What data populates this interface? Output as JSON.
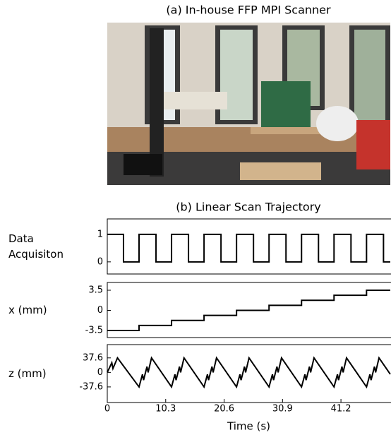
{
  "photo": {
    "title": "(a) In-house FFP MPI Scanner"
  },
  "chart_data": [
    {
      "type": "line",
      "title": "(b) Linear Scan Trajectory",
      "ylabel": "Data Acquisiton",
      "xlim": [
        0,
        49.9
      ],
      "ylim": [
        -0.44,
        1.56
      ],
      "yticks": [
        0,
        1
      ],
      "series": [
        {
          "color": "#000000",
          "x": [
            0,
            2.86,
            2.86,
            5.6,
            5.6,
            8.59,
            8.59,
            11.33,
            11.33,
            14.32,
            14.32,
            17.06,
            17.06,
            20.05,
            20.05,
            22.79,
            22.79,
            25.78,
            25.78,
            28.52,
            28.52,
            31.51,
            31.51,
            34.25,
            34.25,
            37.24,
            37.24,
            39.98,
            39.98,
            42.97,
            42.97,
            45.71,
            45.71,
            48.7,
            48.7,
            49.9
          ],
          "values": [
            1,
            1,
            0,
            0,
            1,
            1,
            0,
            0,
            1,
            1,
            0,
            0,
            1,
            1,
            0,
            0,
            1,
            1,
            0,
            0,
            1,
            1,
            0,
            0,
            1,
            1,
            0,
            0,
            1,
            1,
            0,
            0,
            1,
            1,
            0,
            0
          ]
        }
      ]
    },
    {
      "type": "line",
      "ylabel": "x (mm)",
      "xlim": [
        0,
        49.9
      ],
      "ylim": [
        -4.73,
        4.85
      ],
      "yticks": [
        -3.5,
        0,
        3.5
      ],
      "series": [
        {
          "color": "#000000",
          "x": [
            0,
            5.6,
            5.6,
            11.33,
            11.33,
            17.06,
            17.06,
            22.79,
            22.79,
            28.52,
            28.52,
            34.25,
            34.25,
            39.98,
            39.98,
            45.71,
            45.71,
            49.9
          ],
          "values": [
            -3.5,
            -3.5,
            -2.625,
            -2.625,
            -1.75,
            -1.75,
            -0.875,
            -0.875,
            0,
            0,
            0.875,
            0.875,
            1.75,
            1.75,
            2.625,
            2.625,
            3.5,
            3.5
          ]
        }
      ]
    },
    {
      "type": "line",
      "ylabel": "z (mm)",
      "xlabel": "Time (s)",
      "xlim": [
        0,
        49.9
      ],
      "ylim": [
        -78,
        72
      ],
      "yticks": [
        -37.6,
        0,
        37.6
      ],
      "xticks": [
        0,
        10.3,
        20.6,
        30.9,
        41.2
      ],
      "series": [
        {
          "color": "#000000",
          "x": [
            0,
            0.8,
            1.0,
            1.8,
            5.6,
            6.2,
            6.4,
            7.0,
            7.2,
            7.8,
            11.33,
            11.93,
            12.13,
            12.73,
            12.93,
            13.53,
            17.06,
            17.66,
            17.86,
            18.46,
            18.66,
            19.26,
            22.79,
            23.39,
            23.59,
            24.19,
            24.39,
            24.99,
            28.52,
            29.12,
            29.32,
            29.92,
            30.12,
            30.72,
            34.25,
            34.85,
            35.05,
            35.65,
            35.85,
            36.45,
            39.98,
            40.58,
            40.78,
            41.38,
            41.58,
            42.18,
            45.71,
            46.31,
            46.51,
            47.11,
            47.31,
            47.91,
            49.9
          ],
          "values": [
            0,
            25,
            10,
            37.6,
            -37.6,
            -5,
            -20,
            15,
            0,
            37.6,
            -37.6,
            -5,
            -20,
            15,
            0,
            37.6,
            -37.6,
            -5,
            -20,
            15,
            0,
            37.6,
            -37.6,
            -5,
            -20,
            15,
            0,
            37.6,
            -37.6,
            -5,
            -20,
            15,
            0,
            37.6,
            -37.6,
            -5,
            -20,
            15,
            0,
            37.6,
            -37.6,
            -5,
            -20,
            15,
            0,
            37.6,
            -37.6,
            -5,
            -20,
            15,
            0,
            37.6,
            -4.8
          ]
        }
      ]
    }
  ]
}
